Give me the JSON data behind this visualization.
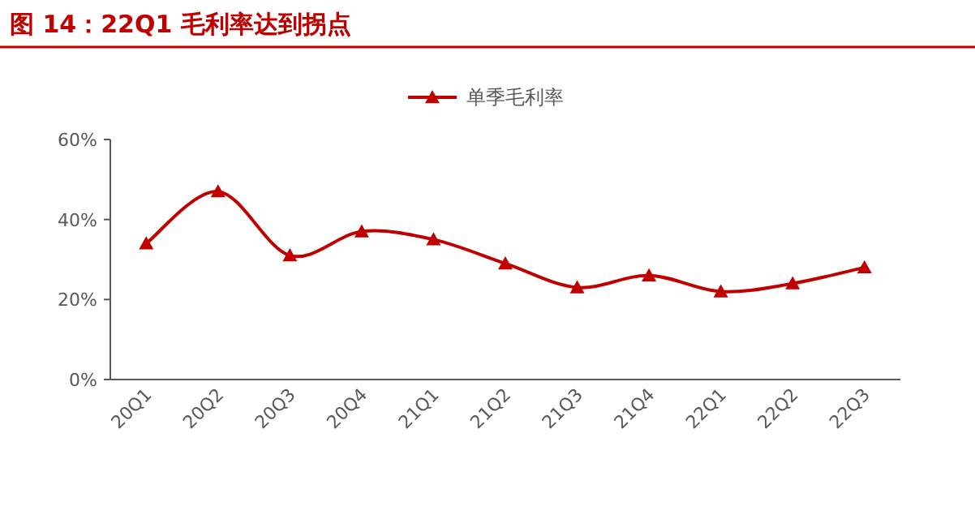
{
  "chart_data": {
    "type": "line",
    "title": "图 14：22Q1 毛利率达到拐点",
    "categories": [
      "20Q1",
      "20Q2",
      "20Q3",
      "20Q4",
      "21Q1",
      "21Q2",
      "21Q3",
      "21Q4",
      "22Q1",
      "22Q2",
      "22Q3"
    ],
    "series": [
      {
        "name": "单季毛利率",
        "color": "#c00000",
        "values": [
          34,
          47,
          31,
          37,
          35,
          29,
          23,
          26,
          22,
          24,
          28
        ]
      }
    ],
    "ylim": [
      0,
      60
    ],
    "yticks": [
      {
        "value": 0,
        "label": "0%"
      },
      {
        "value": 20,
        "label": "20%"
      },
      {
        "value": 40,
        "label": "40%"
      },
      {
        "value": 60,
        "label": "60%"
      }
    ],
    "legend": "top",
    "marker": "triangle",
    "line_style": "solid"
  }
}
